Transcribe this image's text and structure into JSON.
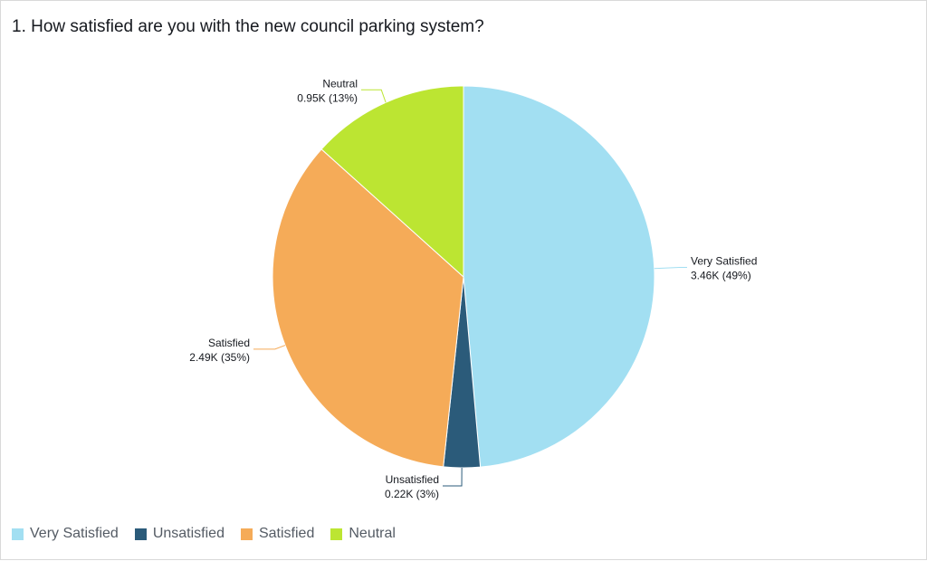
{
  "title": "1. How satisfied are you with the new council parking system?",
  "chart_data": {
    "type": "pie",
    "title": "1. How satisfied are you with the new council parking system?",
    "slices": [
      {
        "name": "Very Satisfied",
        "value": 3460,
        "display_value": "3.46K",
        "percent": "49%",
        "color": "#a2dff2"
      },
      {
        "name": "Unsatisfied",
        "value": 220,
        "display_value": "0.22K",
        "percent": "3%",
        "color": "#2b5b7a"
      },
      {
        "name": "Satisfied",
        "value": 2490,
        "display_value": "2.49K",
        "percent": "35%",
        "color": "#f5ab58"
      },
      {
        "name": "Neutral",
        "value": 950,
        "display_value": "0.95K",
        "percent": "13%",
        "color": "#bce532"
      }
    ],
    "legend_position": "bottom-left"
  },
  "legend": [
    {
      "label": "Very Satisfied",
      "color": "#a2dff2"
    },
    {
      "label": "Unsatisfied",
      "color": "#2b5b7a"
    },
    {
      "label": "Satisfied",
      "color": "#f5ab58"
    },
    {
      "label": "Neutral",
      "color": "#bce532"
    }
  ]
}
